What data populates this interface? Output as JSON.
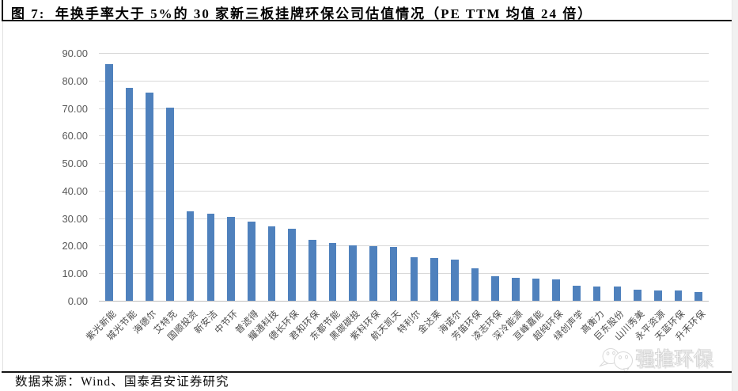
{
  "figure": {
    "title": "图 7:  年换手率大于 5%的 30 家新三板挂牌环保公司估值情况（PE TTM 均值 24 倍）"
  },
  "chart_data": {
    "type": "bar",
    "title": "年换手率大于 5%的 30 家新三板挂牌环保公司估值情况（PE TTM 均值 24 倍）",
    "categories": [
      "紫光新能",
      "城光节能",
      "海德尔",
      "艾特克",
      "国顺投资",
      "新安洁",
      "中节环",
      "普滤得",
      "耀通科技",
      "德长环保",
      "君和环保",
      "东都节能",
      "黑碳碳投",
      "紫科环保",
      "航天凯天",
      "特利尔",
      "金达莱",
      "海诺尔",
      "芳笛环保",
      "凌志环保",
      "深冷能源",
      "亘峰嘉能",
      "超纯环保",
      "绿创声学",
      "高衡力",
      "巨东股份",
      "山川秀美",
      "永平资源",
      "天蓝环保",
      "升禾环保"
    ],
    "values": [
      86.0,
      77.5,
      75.8,
      70.2,
      32.6,
      31.7,
      30.6,
      29.0,
      27.3,
      26.4,
      22.2,
      21.0,
      20.4,
      20.0,
      19.6,
      16.1,
      15.7,
      15.1,
      11.9,
      9.2,
      8.5,
      8.2,
      7.9,
      5.6,
      5.3,
      5.2,
      4.2,
      4.0,
      3.9,
      3.2
    ],
    "xlabel": "",
    "ylabel": "",
    "ylim": [
      0,
      90
    ],
    "ytick_labels": [
      "0.00",
      "10.00",
      "20.00",
      "30.00",
      "40.00",
      "50.00",
      "60.00",
      "70.00",
      "80.00",
      "90.00"
    ],
    "grid": true,
    "legend": false,
    "bar_color": "#4f81bd",
    "pe_ttm_average": 24
  },
  "watermark": {
    "logo": "wechat-bubbles-icon",
    "text": "强推环保"
  },
  "footer": {
    "source": "数据来源：Wind、国泰君安证券研究"
  }
}
